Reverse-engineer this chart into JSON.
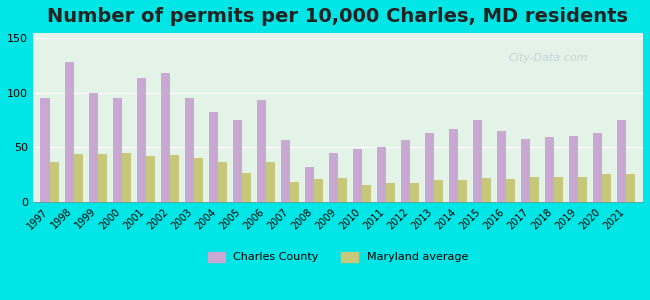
{
  "title": "Number of permits per 10,000 Charles, MD residents",
  "years": [
    1997,
    1998,
    1999,
    2000,
    2001,
    2002,
    2003,
    2004,
    2005,
    2006,
    2007,
    2008,
    2009,
    2010,
    2011,
    2012,
    2013,
    2014,
    2015,
    2016,
    2017,
    2018,
    2019,
    2020,
    2021
  ],
  "charles_county": [
    95,
    128,
    100,
    95,
    114,
    118,
    95,
    82,
    75,
    93,
    57,
    32,
    45,
    48,
    50,
    57,
    63,
    67,
    75,
    65,
    58,
    59,
    60,
    63,
    75
  ],
  "maryland_avg": [
    36,
    44,
    44,
    45,
    42,
    43,
    40,
    36,
    26,
    36,
    18,
    21,
    22,
    15,
    17,
    17,
    20,
    20,
    22,
    21,
    23,
    23,
    23,
    25,
    25
  ],
  "charles_color": "#c9a8d4",
  "maryland_color": "#c8c87a",
  "background_outer": "#00e5e5",
  "background_inner_top": "#d8ede0",
  "background_inner_bottom": "#e8f4e0",
  "ylim": [
    0,
    155
  ],
  "yticks": [
    0,
    50,
    100,
    150
  ],
  "title_fontsize": 14,
  "legend_charles": "Charles County",
  "legend_maryland": "Maryland average"
}
